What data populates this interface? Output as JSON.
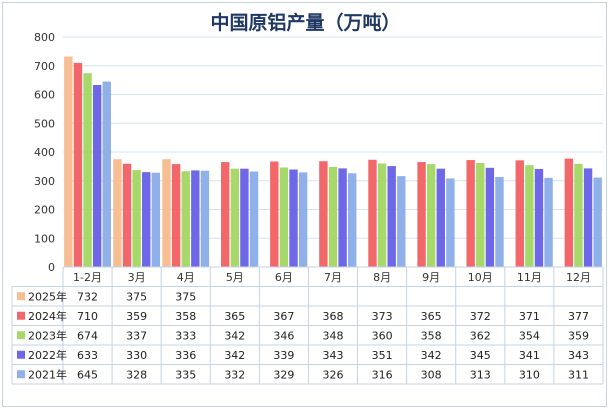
{
  "chart_data": {
    "type": "bar",
    "title": "中国原铝产量（万吨）",
    "xlabel": "",
    "ylabel": "",
    "ylim": [
      0,
      800
    ],
    "yticks": [
      0,
      100,
      200,
      300,
      400,
      500,
      600,
      700,
      800
    ],
    "grid": true,
    "legend": "table-left",
    "categories": [
      "1-2月",
      "3月",
      "4月",
      "5月",
      "6月",
      "7月",
      "8月",
      "9月",
      "10月",
      "11月",
      "12月"
    ],
    "series": [
      {
        "name": "2025年",
        "color": "#f7be93",
        "values": [
          732,
          375,
          375,
          null,
          null,
          null,
          null,
          null,
          null,
          null,
          null
        ]
      },
      {
        "name": "2024年",
        "color": "#f2676a",
        "values": [
          710,
          359,
          358,
          365,
          367,
          368,
          373,
          365,
          372,
          371,
          377
        ]
      },
      {
        "name": "2023年",
        "color": "#a6d96a",
        "values": [
          674,
          337,
          333,
          342,
          346,
          348,
          360,
          358,
          362,
          354,
          359
        ]
      },
      {
        "name": "2022年",
        "color": "#6e68e8",
        "values": [
          633,
          330,
          336,
          342,
          339,
          343,
          351,
          342,
          345,
          341,
          343
        ]
      },
      {
        "name": "2021年",
        "color": "#8fb0e8",
        "values": [
          645,
          328,
          335,
          332,
          329,
          326,
          316,
          308,
          313,
          310,
          311
        ]
      }
    ]
  }
}
